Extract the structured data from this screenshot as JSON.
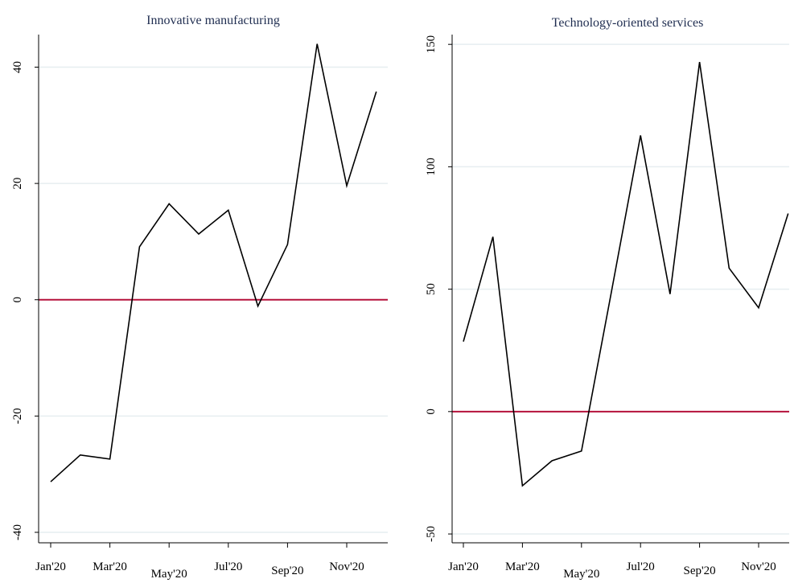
{
  "chart_data": [
    {
      "type": "line",
      "title": "Innovative manufacturing",
      "categories": [
        "Jan'20",
        null,
        "Mar'20",
        null,
        "May'20",
        null,
        "Jul'20",
        null,
        "Sep'20",
        null,
        "Nov'20",
        null
      ],
      "series": [
        {
          "color": "#000000",
          "values": [
            -31.3,
            -26.7,
            -27.4,
            9.1,
            16.5,
            11.3,
            15.4,
            -1.1,
            9.5,
            44.0,
            19.6,
            35.8
          ]
        }
      ],
      "ylim": [
        -41.8,
        45.6
      ],
      "yticks": [
        -40,
        -20,
        0,
        20,
        40
      ],
      "grid": true,
      "hline": 0,
      "hline_color": "#b5123b"
    },
    {
      "type": "line",
      "title": "Technology-oriented services",
      "categories": [
        "Jan'20",
        null,
        "Mar'20",
        null,
        "May'20",
        null,
        "Jul'20",
        null,
        "Sep'20",
        null,
        "Nov'20",
        null
      ],
      "series": [
        {
          "color": "#000000",
          "values": [
            28.6,
            71.4,
            -30.3,
            -20.1,
            -16.1,
            48.0,
            112.8,
            48.0,
            142.8,
            58.6,
            42.4,
            80.9
          ]
        }
      ],
      "ylim": [
        -53.6,
        154
      ],
      "yticks": [
        -50,
        0,
        50,
        100,
        150
      ],
      "grid": true,
      "hline": 0,
      "hline_color": "#b5123b"
    }
  ]
}
